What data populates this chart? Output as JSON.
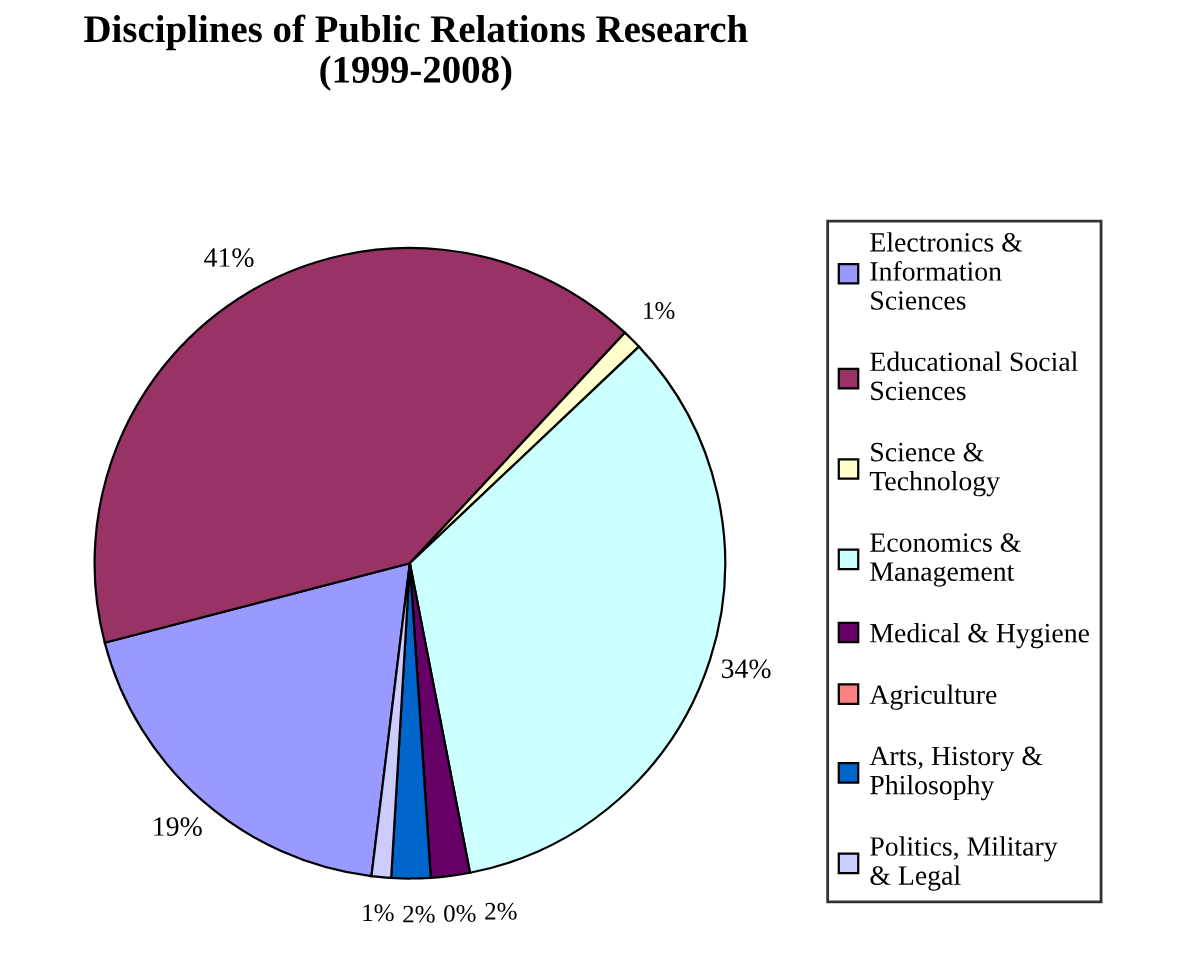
{
  "chart_data": {
    "type": "pie",
    "title": "Disciplines of Public Relations Research\n(1999-2008)",
    "categories": [
      "Electronics & Information Sciences",
      "Educational Social Sciences",
      "Science & Technology",
      "Economics & Management",
      "Medical & Hygiene",
      "Agriculture",
      "Arts, History & Philosophy",
      "Politics, Military & Legal"
    ],
    "values": [
      19,
      41,
      1,
      34,
      2,
      0,
      2,
      1
    ],
    "colors": [
      "#9999ff",
      "#993366",
      "#ffffcc",
      "#ccffff",
      "#660066",
      "#ff8080",
      "#0066cc",
      "#ccccff"
    ],
    "value_labels": [
      "19%",
      "41%",
      "1%",
      "34%",
      "2%",
      "0%",
      "2%",
      "1%"
    ],
    "legend": "right"
  }
}
